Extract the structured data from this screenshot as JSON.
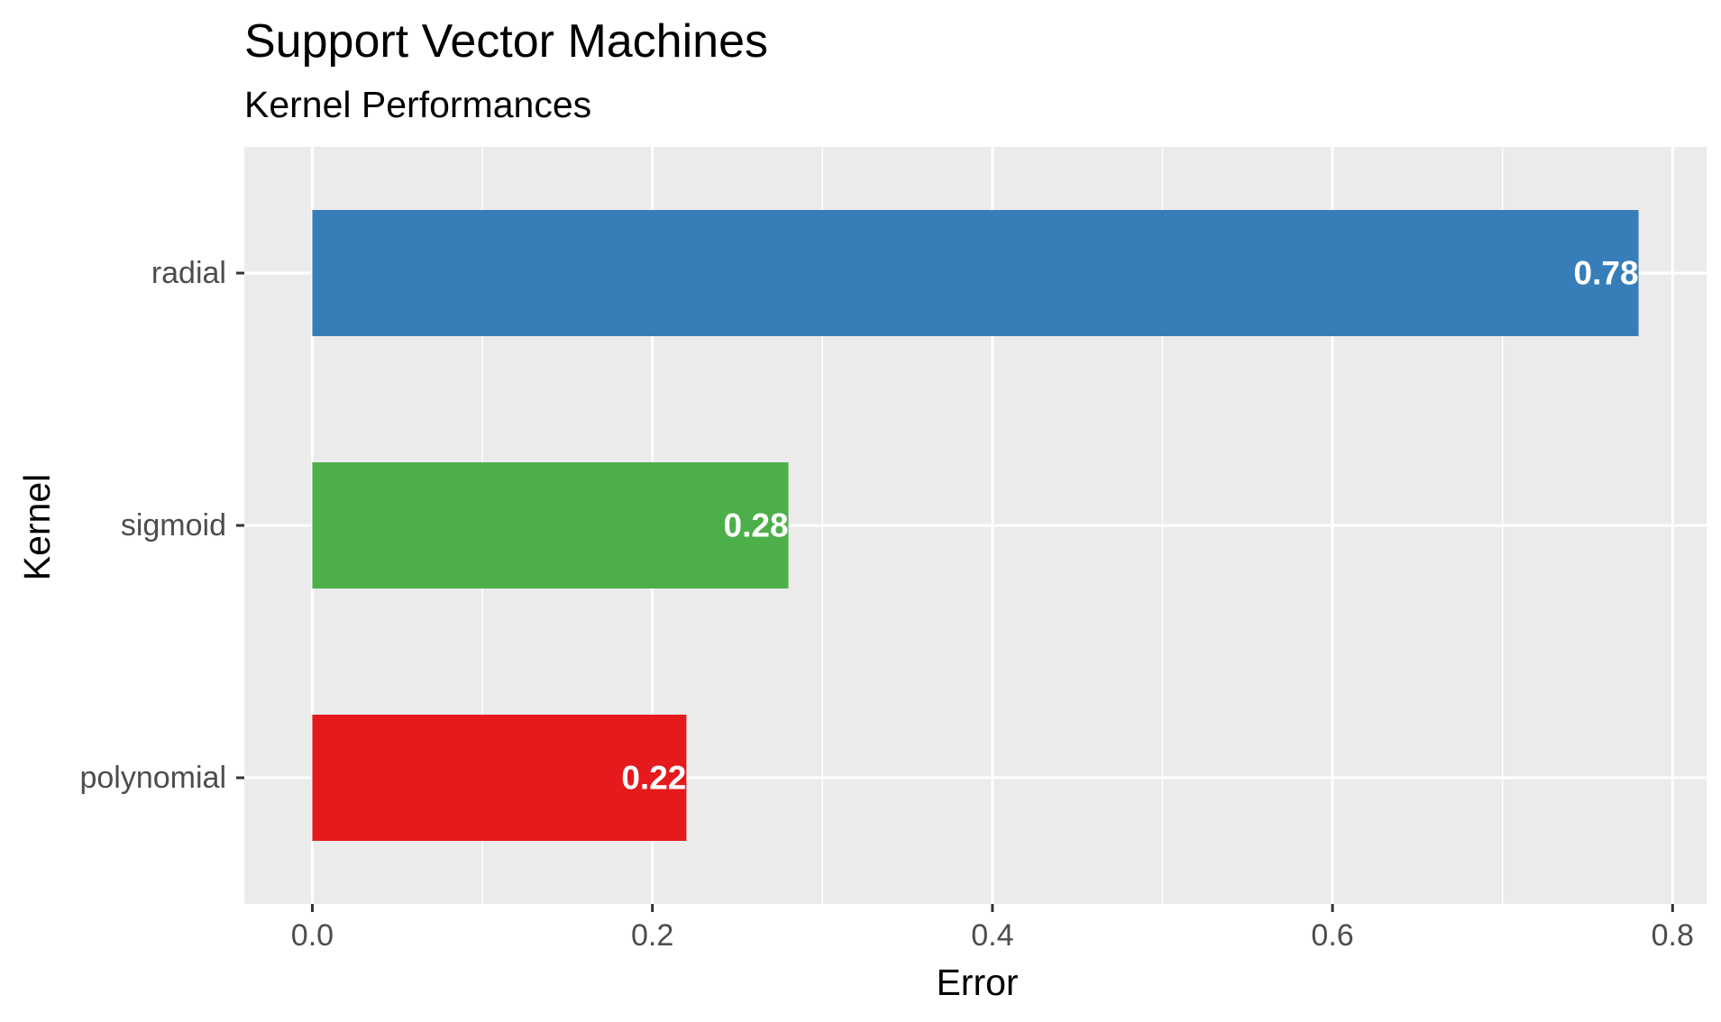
{
  "chart_data": {
    "type": "bar",
    "orientation": "horizontal",
    "title": "Support Vector Machines",
    "subtitle": "Kernel Performances",
    "xlabel": "Error",
    "ylabel": "Kernel",
    "xlim": [
      -0.04,
      0.82
    ],
    "x_ticks": [
      0.0,
      0.2,
      0.4,
      0.6,
      0.8
    ],
    "x_tick_labels": [
      "0.0",
      "0.2",
      "0.4",
      "0.6",
      "0.8"
    ],
    "grid": true,
    "legend": "none",
    "categories": [
      "radial",
      "sigmoid",
      "polynomial"
    ],
    "values": [
      0.78,
      0.28,
      0.22
    ],
    "value_labels": [
      "0.78",
      "0.28",
      "0.22"
    ],
    "colors": [
      "#377EB8",
      "#4DAF4A",
      "#E41A1C"
    ]
  },
  "style": {
    "panel_background": "#EBEBEB",
    "grid_color": "#FFFFFF"
  }
}
